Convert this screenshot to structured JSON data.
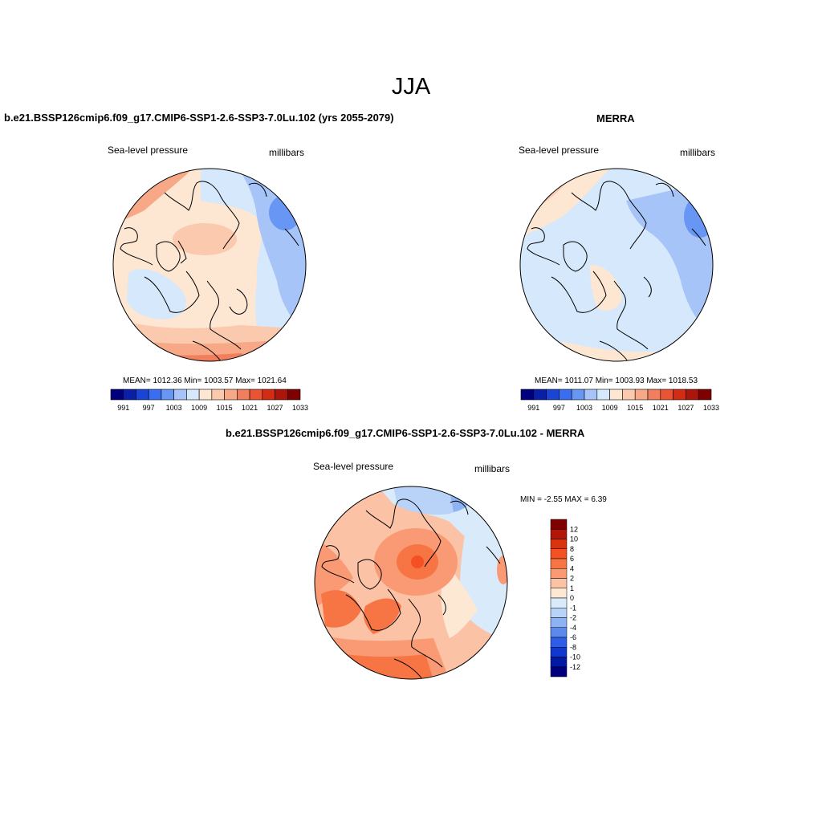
{
  "main_title": "JJA",
  "panels": [
    {
      "title": "b.e21.BSSP126cmip6.f09_g17.CMIP6-SSP1-2.6-SSP3-7.0Lu.102 (yrs 2055-2079)",
      "left_label": "Sea-level pressure",
      "right_label": "millibars",
      "stats": "MEAN= 1012.36  Min= 1003.57  Max= 1021.64",
      "colorbar_ticks": [
        "991",
        "997",
        "1003",
        "1009",
        "1015",
        "1021",
        "1027",
        "1033"
      ]
    },
    {
      "title": "MERRA",
      "left_label": "Sea-level pressure",
      "right_label": "millibars",
      "stats": "MEAN= 1011.07  Min= 1003.93  Max= 1018.53",
      "colorbar_ticks": [
        "991",
        "997",
        "1003",
        "1009",
        "1015",
        "1021",
        "1027",
        "1033"
      ]
    },
    {
      "title": "b.e21.BSSP126cmip6.f09_g17.CMIP6-SSP1-2.6-SSP3-7.0Lu.102 - MERRA",
      "left_label": "Sea-level pressure",
      "right_label": "millibars",
      "stats": "MIN =  -2.55 MAX =   6.39",
      "colorbar_ticks": [
        "12",
        "10",
        "8",
        "6",
        "4",
        "2",
        "1",
        "0",
        "-1",
        "-2",
        "-4",
        "-6",
        "-8",
        "-10",
        "-12"
      ]
    }
  ],
  "colors": {
    "abs_scale": [
      "#00007f",
      "#0a1fa8",
      "#1a44d6",
      "#3a6ef0",
      "#6896f5",
      "#a6c4f7",
      "#d6e8fb",
      "#fde6d2",
      "#fbc9ad",
      "#f7a887",
      "#f17e5c",
      "#e95534",
      "#d42b13",
      "#ac150a",
      "#7f0000"
    ],
    "diff_scale": [
      "#7f0000",
      "#b31608",
      "#d9330f",
      "#f55023",
      "#f77545",
      "#f99a74",
      "#fbc2a6",
      "#fde8d4",
      "#d9eafb",
      "#b8d3f7",
      "#8db3f2",
      "#5b89ec",
      "#2f5ee6",
      "#1037cf",
      "#0219a6",
      "#00007f"
    ]
  }
}
